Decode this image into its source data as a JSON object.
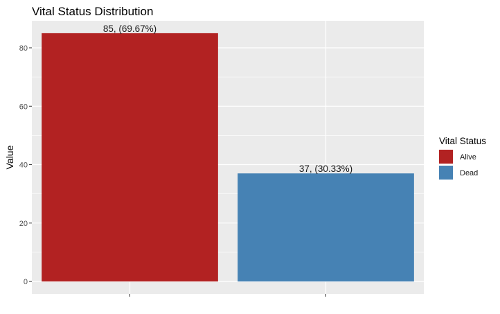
{
  "chart_data": {
    "type": "bar",
    "title": "Vital Status Distribution",
    "xlabel": "",
    "ylabel": "Value",
    "categories": [
      "Alive",
      "Dead"
    ],
    "values": [
      85,
      37
    ],
    "data_labels": [
      "85, (69.67%)",
      "37, (30.33%)"
    ],
    "ylim": [
      -4.25,
      89.25
    ],
    "yticks": [
      0,
      20,
      40,
      60,
      80
    ],
    "grid": true,
    "legend": {
      "title": "Vital Status",
      "placement": "right",
      "entries": [
        "Alive",
        "Dead"
      ]
    },
    "colors": [
      "#B22222",
      "#4682B4"
    ],
    "panel_background": "#EBEBEB",
    "grid_color": "#FFFFFF"
  }
}
